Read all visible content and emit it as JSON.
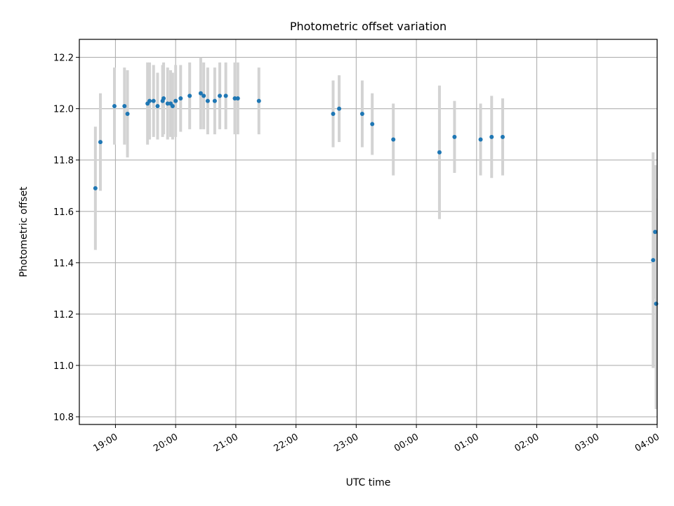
{
  "chart_data": {
    "type": "scatter",
    "title": "Photometric offset variation",
    "xlabel": "UTC time",
    "ylabel": "Photometric offset",
    "grid": true,
    "legend": "none",
    "colors": {
      "point": "#1f77b4",
      "errorbar": "#d3d3d3",
      "grid": "#b0b0b0",
      "axis": "#000000"
    },
    "xlim": [
      "18:24",
      "04:00"
    ],
    "ylim": [
      10.77,
      12.27
    ],
    "x_ticks": [
      "19:00",
      "20:00",
      "21:00",
      "22:00",
      "23:00",
      "00:00",
      "01:00",
      "02:00",
      "03:00",
      "04:00"
    ],
    "y_ticks": [
      10.8,
      11.0,
      11.2,
      11.4,
      11.6,
      11.8,
      12.0,
      12.2
    ],
    "series": [
      {
        "points": [
          {
            "x": "18:40",
            "y": 11.69,
            "err": 0.24
          },
          {
            "x": "18:45",
            "y": 11.87,
            "err": 0.19
          },
          {
            "x": "18:59",
            "y": 12.01,
            "err": 0.15
          },
          {
            "x": "19:09",
            "y": 12.01,
            "err": 0.15
          },
          {
            "x": "19:12",
            "y": 11.98,
            "err": 0.17
          },
          {
            "x": "19:32",
            "y": 12.02,
            "err": 0.16
          },
          {
            "x": "19:34",
            "y": 12.03,
            "err": 0.15
          },
          {
            "x": "19:38",
            "y": 12.03,
            "err": 0.14
          },
          {
            "x": "19:42",
            "y": 12.01,
            "err": 0.13
          },
          {
            "x": "19:47",
            "y": 12.03,
            "err": 0.14
          },
          {
            "x": "19:48",
            "y": 12.04,
            "err": 0.14
          },
          {
            "x": "19:52",
            "y": 12.02,
            "err": 0.14
          },
          {
            "x": "19:55",
            "y": 12.02,
            "err": 0.13
          },
          {
            "x": "19:57",
            "y": 12.01,
            "err": 0.13
          },
          {
            "x": "20:00",
            "y": 12.03,
            "err": 0.14
          },
          {
            "x": "20:05",
            "y": 12.04,
            "err": 0.13
          },
          {
            "x": "20:14",
            "y": 12.05,
            "err": 0.13
          },
          {
            "x": "20:25",
            "y": 12.06,
            "err": 0.14
          },
          {
            "x": "20:28",
            "y": 12.05,
            "err": 0.13
          },
          {
            "x": "20:32",
            "y": 12.03,
            "err": 0.13
          },
          {
            "x": "20:39",
            "y": 12.03,
            "err": 0.13
          },
          {
            "x": "20:44",
            "y": 12.05,
            "err": 0.13
          },
          {
            "x": "20:50",
            "y": 12.05,
            "err": 0.13
          },
          {
            "x": "20:59",
            "y": 12.04,
            "err": 0.14
          },
          {
            "x": "21:02",
            "y": 12.04,
            "err": 0.14
          },
          {
            "x": "21:23",
            "y": 12.03,
            "err": 0.13
          },
          {
            "x": "22:37",
            "y": 11.98,
            "err": 0.13
          },
          {
            "x": "22:43",
            "y": 12.0,
            "err": 0.13
          },
          {
            "x": "23:06",
            "y": 11.98,
            "err": 0.13
          },
          {
            "x": "23:16",
            "y": 11.94,
            "err": 0.12
          },
          {
            "x": "23:37",
            "y": 11.88,
            "err": 0.14
          },
          {
            "x": "00:23",
            "y": 11.83,
            "err": 0.26
          },
          {
            "x": "00:38",
            "y": 11.89,
            "err": 0.14
          },
          {
            "x": "01:04",
            "y": 11.88,
            "err": 0.14
          },
          {
            "x": "01:15",
            "y": 11.89,
            "err": 0.16
          },
          {
            "x": "01:26",
            "y": 11.89,
            "err": 0.15
          },
          {
            "x": "03:56",
            "y": 11.41,
            "err": 0.42
          },
          {
            "x": "03:58",
            "y": 11.52,
            "err": 0.26
          },
          {
            "x": "03:59",
            "y": 11.24,
            "err": 0.41
          }
        ]
      }
    ]
  }
}
